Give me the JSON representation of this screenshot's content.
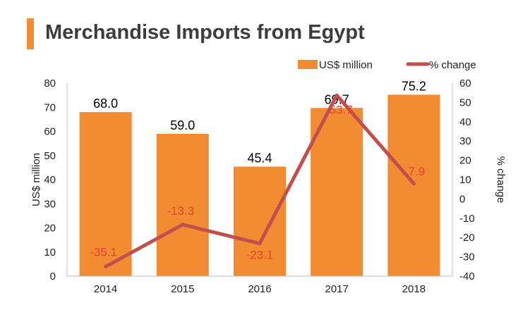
{
  "chart_data": {
    "title": "Merchandise Imports from Egypt",
    "type": "bar+line",
    "categories": [
      "2014",
      "2015",
      "2016",
      "2017",
      "2018"
    ],
    "series": [
      {
        "name": "US$ million",
        "type": "bar",
        "axis": "left",
        "values": [
          68.0,
          59.0,
          45.4,
          69.7,
          75.2
        ],
        "labels": [
          "68.0",
          "59.0",
          "45.4",
          "69.7",
          "75.2"
        ],
        "color": "#f28c33"
      },
      {
        "name": "% change",
        "type": "line",
        "axis": "right",
        "values": [
          -35.1,
          -13.3,
          -23.1,
          53.7,
          7.9
        ],
        "labels": [
          "-35.1",
          "-13.3",
          "-23.1",
          "53.7",
          "7.9"
        ],
        "color": "#c0504d"
      }
    ],
    "ylabel": "US$ million",
    "ylabel_right": "% change",
    "ylim": [
      0,
      80
    ],
    "ylim_right": [
      -40,
      60
    ],
    "yticks": [
      "0",
      "10",
      "20",
      "30",
      "40",
      "50",
      "60",
      "70",
      "80"
    ],
    "yticks_right": [
      "-40",
      "-30",
      "-20",
      "-10",
      "0",
      "10",
      "20",
      "30",
      "40",
      "50",
      "60"
    ],
    "legend_position": "top-right",
    "grid": false,
    "accent_color": "#f28c33",
    "line_label_color": "#e8432d"
  }
}
